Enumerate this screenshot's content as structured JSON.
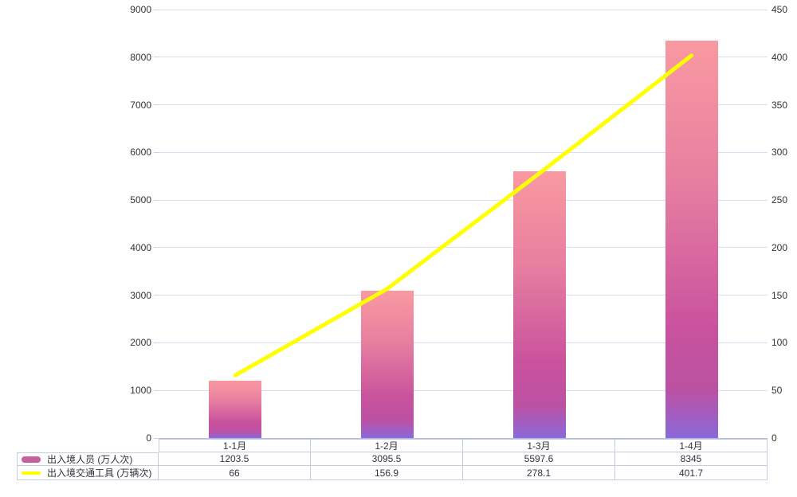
{
  "chart_data": {
    "type": "bar",
    "subtype": "combo-bar-line-dual-axis",
    "title": "",
    "categories": [
      "1-1月",
      "1-2月",
      "1-3月",
      "1-4月"
    ],
    "series": [
      {
        "name": "出入境人员 (万人次)",
        "type": "bar",
        "axis": "left",
        "values": [
          1203.5,
          3095.5,
          5597.6,
          8345
        ]
      },
      {
        "name": "出入境交通工具 (万辆次)",
        "type": "line",
        "axis": "right",
        "values": [
          66,
          156.9,
          278.1,
          401.7
        ]
      }
    ],
    "left_axis": {
      "min": 0,
      "max": 9000,
      "step": 1000,
      "ticks": [
        "0",
        "1000",
        "2000",
        "3000",
        "4000",
        "5000",
        "6000",
        "7000",
        "8000",
        "9000"
      ]
    },
    "right_axis": {
      "min": 0,
      "max": 450,
      "step": 50,
      "ticks": [
        "0",
        "50",
        "100",
        "150",
        "200",
        "250",
        "300",
        "350",
        "400",
        "450"
      ]
    },
    "grid": true,
    "legend_position": "bottom-table"
  },
  "colors": {
    "background": "#ffffff",
    "text": "#333333",
    "grid_line": "#d9ddef",
    "axis_line": "#b3bad8",
    "tick": "#ccd1e8",
    "table_border": "#c5cbe3",
    "bar_gradient": [
      "#f999a1",
      "#e77fa0",
      "#c9529d",
      "#bb51a3",
      "#8b69da"
    ],
    "line": "#ffff00",
    "legend_bar_swatch": "#ca5f9f"
  }
}
